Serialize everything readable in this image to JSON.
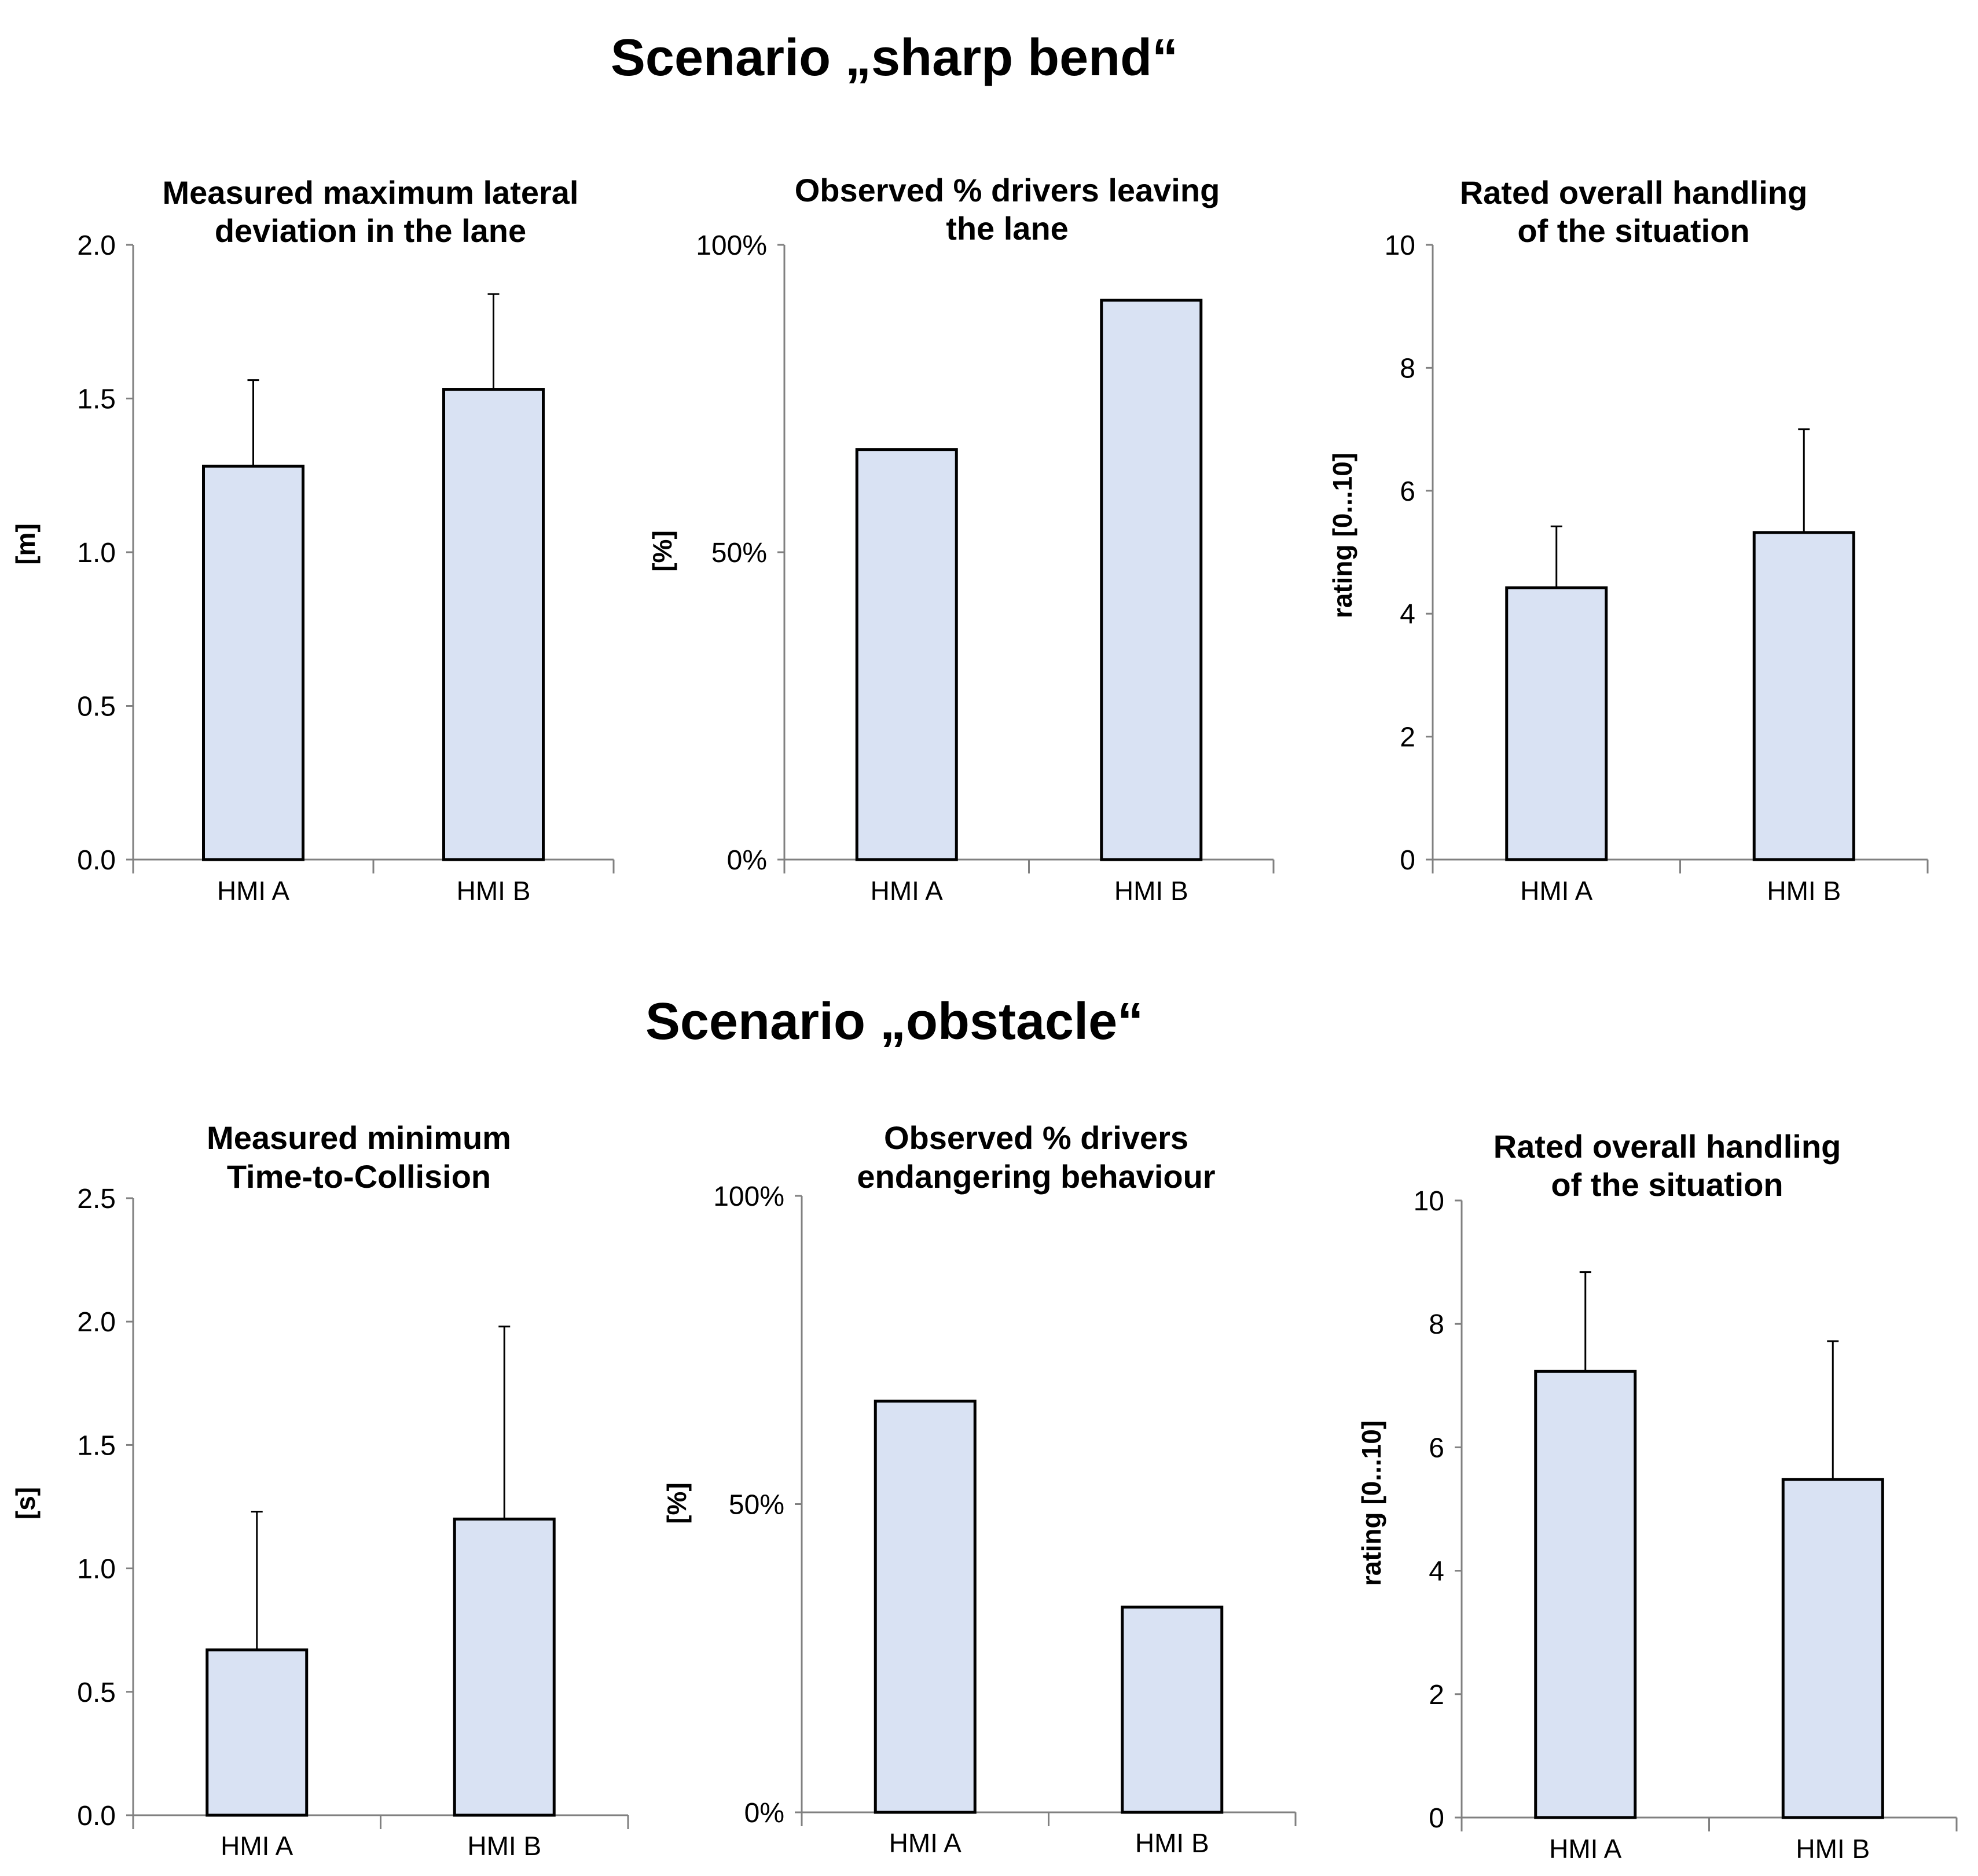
{
  "scenarios": [
    {
      "title": "Scenario „sharp bend“"
    },
    {
      "title": "Scenario „obstacle“"
    }
  ],
  "chart_data": [
    {
      "type": "bar",
      "title_lines": [
        "Measured maximum  lateral",
        "deviation in the lane"
      ],
      "ylabel": "[m]",
      "categories": [
        "HMI A",
        "HMI B"
      ],
      "values": [
        1.28,
        1.53
      ],
      "errors": [
        0.28,
        0.31
      ],
      "ylim": [
        0,
        2.0
      ],
      "yticks": [
        0.0,
        0.5,
        1.0,
        1.5,
        2.0
      ],
      "ytick_labels": [
        "0.0",
        "0.5",
        "1.0",
        "1.5",
        "2.0"
      ]
    },
    {
      "type": "bar",
      "title_lines": [
        "Observed %  drivers leaving",
        "the lane"
      ],
      "ylabel": "[%]",
      "categories": [
        "HMI A",
        "HMI B"
      ],
      "values": [
        0.667,
        0.91
      ],
      "errors": [
        0,
        0
      ],
      "ylim": [
        0,
        1
      ],
      "yticks": [
        0,
        0.5,
        1
      ],
      "ytick_labels": [
        "0%",
        "50%",
        "100%"
      ]
    },
    {
      "type": "bar",
      "title_lines": [
        "Rated overall handling",
        "of the situation"
      ],
      "ylabel": "rating [0...10]",
      "categories": [
        "HMI A",
        "HMI B"
      ],
      "values": [
        4.42,
        5.32
      ],
      "errors": [
        1.0,
        1.68
      ],
      "ylim": [
        0,
        10
      ],
      "yticks": [
        0,
        2,
        4,
        6,
        8,
        10
      ],
      "ytick_labels": [
        "0",
        "2",
        "4",
        "6",
        "8",
        "10"
      ]
    },
    {
      "type": "bar",
      "title_lines": [
        "Measured minimum",
        "Time-to-Collision"
      ],
      "ylabel": "[s]",
      "categories": [
        "HMI A",
        "HMI B"
      ],
      "values": [
        0.67,
        1.2
      ],
      "errors": [
        0.56,
        0.78
      ],
      "ylim": [
        0,
        2.5
      ],
      "yticks": [
        0.0,
        0.5,
        1.0,
        1.5,
        2.0,
        2.5
      ],
      "ytick_labels": [
        "0.0",
        "0.5",
        "1.0",
        "1.5",
        "2.0",
        "2.5"
      ]
    },
    {
      "type": "bar",
      "title_lines": [
        "Observed %  drivers",
        "endangering behaviour"
      ],
      "ylabel": "[%]",
      "categories": [
        "HMI A",
        "HMI B"
      ],
      "values": [
        0.667,
        0.333
      ],
      "errors": [
        0,
        0
      ],
      "ylim": [
        0,
        1
      ],
      "yticks": [
        0,
        0.5,
        1
      ],
      "ytick_labels": [
        "0%",
        "50%",
        "100%"
      ]
    },
    {
      "type": "bar",
      "title_lines": [
        "Rated  overall handling",
        "of the situation"
      ],
      "ylabel": "rating [0...10]",
      "categories": [
        "HMI A",
        "HMI B"
      ],
      "values": [
        7.23,
        5.48
      ],
      "errors": [
        1.61,
        2.24
      ],
      "ylim": [
        0,
        10
      ],
      "yticks": [
        0,
        2,
        4,
        6,
        8,
        10
      ],
      "ytick_labels": [
        "0",
        "2",
        "4",
        "6",
        "8",
        "10"
      ]
    }
  ]
}
